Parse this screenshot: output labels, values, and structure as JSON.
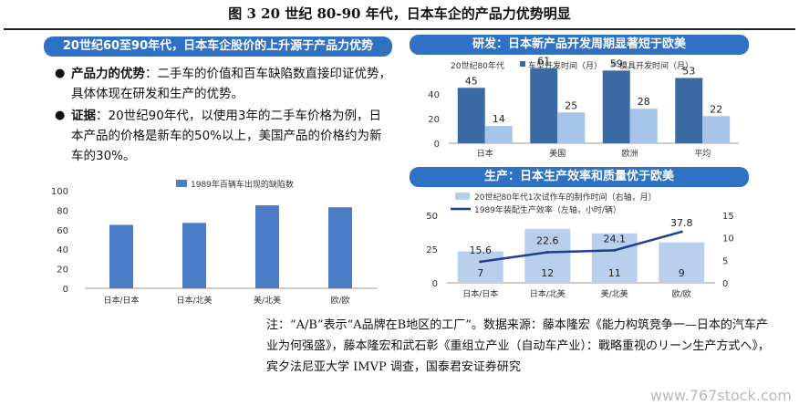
{
  "figure": {
    "title": "图 3 20 世纪 80-90 年代，日本车企的产品力优势明显"
  },
  "left_panel": {
    "header": "20世纪60至90年代，日本车企股价的上升源于产品力优势",
    "bullets": [
      {
        "dot": "●",
        "bold": "产品力的优势",
        "text": "：二手车的价值和百车缺陷数直接印证优势，具体体现在研发和生产的优势。"
      },
      {
        "dot": "●",
        "bold": "证据",
        "text": "：20世纪90年代，以使用3年的二手车价格为例，日本产品的价格是新车的50%以上，美国产品的价格约为新车的30%。"
      }
    ]
  },
  "right_top": {
    "header": "研发：日本新产品开发周期显著短于欧美"
  },
  "right_bottom": {
    "header": "生产：日本生产效率和质量优于欧美"
  },
  "chart_data": [
    {
      "type": "bar",
      "legend_position": "top",
      "categories": [
        "日本/日本",
        "日本/北美",
        "美/北美",
        "欧/欧"
      ],
      "ylim": [
        0,
        100
      ],
      "yticks": [
        0,
        20,
        40,
        60,
        80,
        100
      ],
      "series": [
        {
          "name": "1989年百辆车出现的缺陷数",
          "values": [
            65,
            67,
            85,
            83
          ],
          "color": "#4a7cc7"
        }
      ]
    },
    {
      "type": "bar",
      "legend_position": "top",
      "categories": [
        "日本",
        "美国",
        "欧洲",
        "平均"
      ],
      "ylim": [
        0,
        60
      ],
      "yticks": [
        0,
        20,
        40
      ],
      "legend_title": "20世纪80年代",
      "series": [
        {
          "name": "车型开发时间（月）",
          "values": [
            45,
            61,
            59,
            53
          ],
          "color": "#3a6aa4"
        },
        {
          "name": "模具开发时间（月）",
          "values": [
            14,
            25,
            28,
            22
          ],
          "color": "#a6c4e8"
        }
      ]
    },
    {
      "type": "bar",
      "legend_position": "top",
      "categories": [
        "日本/日本",
        "日本/北美",
        "美/北美",
        "欧/欧"
      ],
      "ylim_left": [
        0,
        50
      ],
      "yticks_left": [
        0,
        25,
        50
      ],
      "ylim_right": [
        0,
        15
      ],
      "yticks_right": [
        0,
        5,
        10,
        15
      ],
      "series": [
        {
          "name": "20世纪80年代1次试作车的制作时间（右轴，月）",
          "type": "bar",
          "axis": "right",
          "values": [
            7,
            12,
            11,
            9
          ],
          "color": "#b9d0ec"
        },
        {
          "name": "1989年装配生产效率（左轴，小时/辆）",
          "type": "line",
          "axis": "left",
          "values": [
            15.6,
            22.6,
            24.1,
            37.8
          ],
          "color": "#1f3f8f"
        }
      ]
    }
  ],
  "note": "注：“A/B”表示“A品牌在B地区的工厂”。数据来源：藤本隆宏《能力构筑竞争一—日本的汽车产业为何强盛》，藤本隆宏和武石彰《重组立产业（自动车产业）：戰略重视のリーン生产方式へ》，宾夕法尼亚大学 IMVP 调查，国泰君安证券研究",
  "watermark": "www.767stock.com"
}
